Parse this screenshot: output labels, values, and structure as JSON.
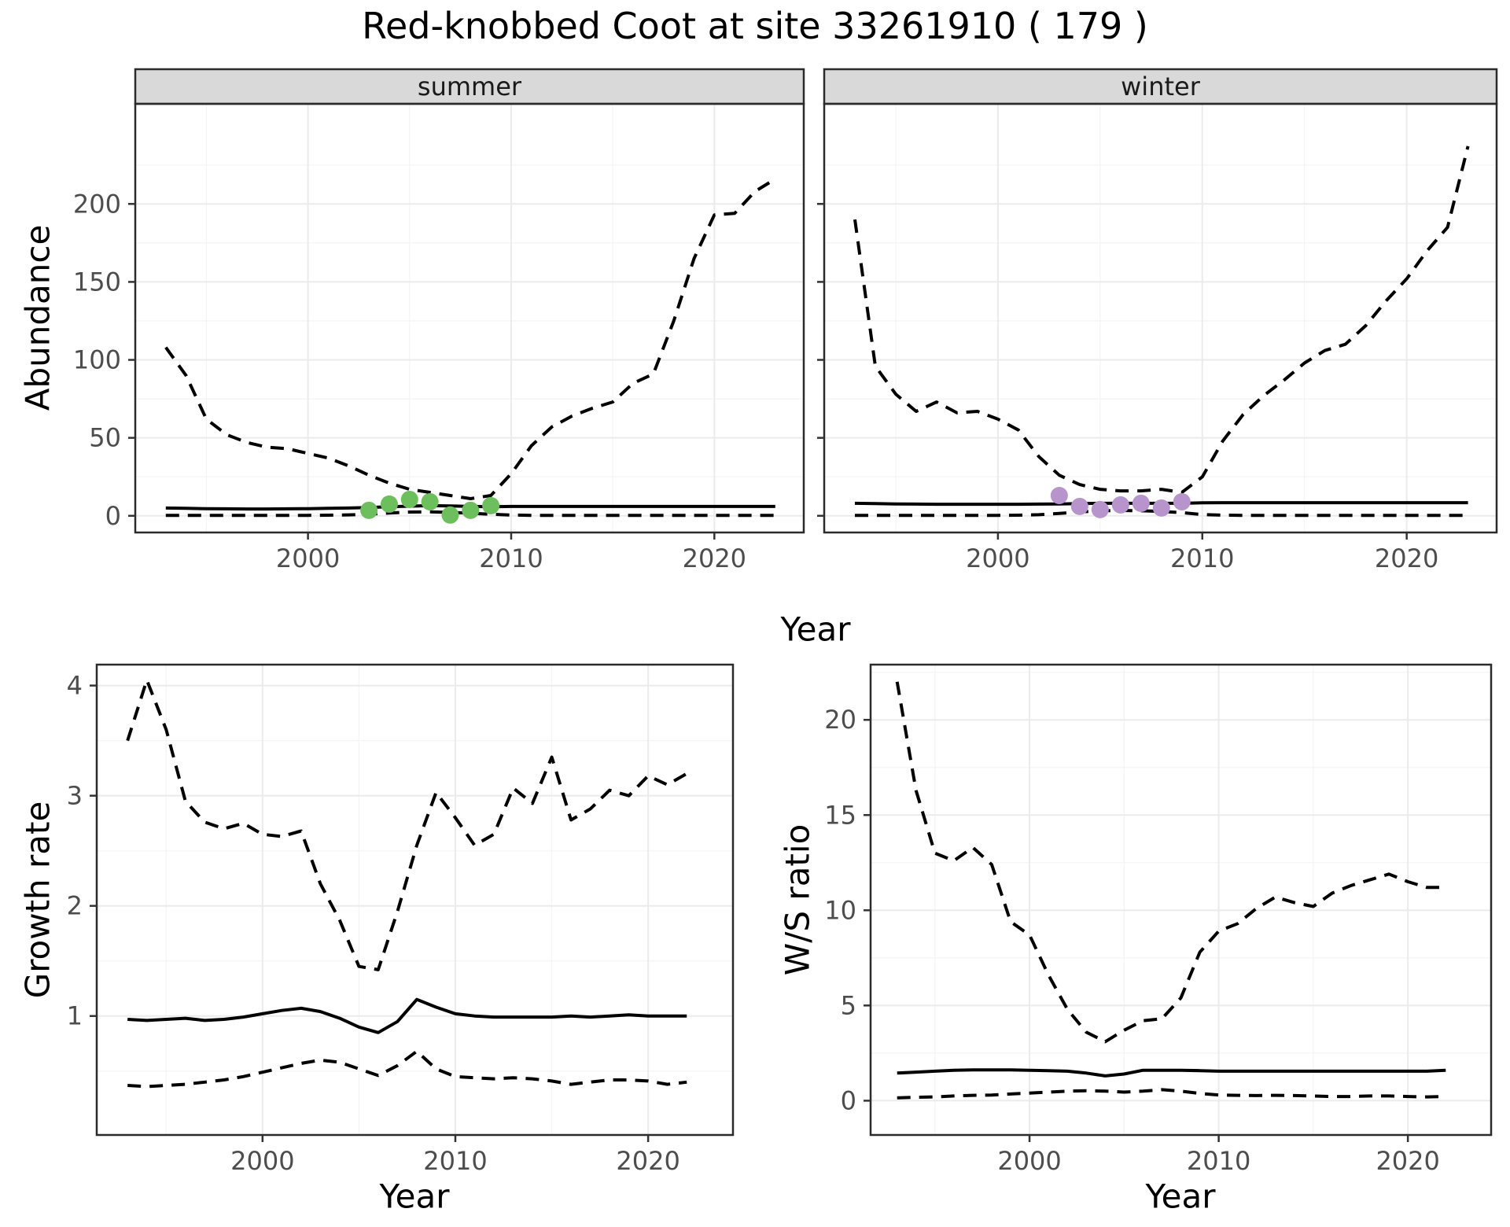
{
  "page_title": "Red-knobbed Coot at site 33261910 ( 179 )",
  "top_row_xlabel": "Year",
  "colors": {
    "line": "#000000",
    "summer_points": "#6cbf5c",
    "winter_points": "#b894cc",
    "strip_bg": "#d9d9d9",
    "panel_bg": "#ffffff",
    "panel_border": "#2b2b2b",
    "grid_major": "#ebebeb",
    "grid_minor": "#f4f4f4",
    "tick_mark": "#333333",
    "tick_label": "#4d4d4d"
  },
  "chart_data": [
    {
      "id": "abundance-summer",
      "type": "line",
      "strip_label": "summer",
      "ylabel": "Abundance",
      "xlabel": null,
      "xlim": [
        1991.5,
        2024.4
      ],
      "ylim": [
        -10.7,
        264.2
      ],
      "xticks": {
        "major": [
          2000,
          2010,
          2020
        ],
        "minor": [
          1995,
          2005,
          2015
        ],
        "labels": [
          "2000",
          "2010",
          "2020"
        ]
      },
      "yticks": {
        "major": [
          0,
          50,
          100,
          150,
          200
        ],
        "minor": [
          25,
          75,
          125,
          175,
          225
        ],
        "labels": [
          "0",
          "50",
          "100",
          "150",
          "200"
        ]
      },
      "x_years": [
        1993,
        1994,
        1995,
        1996,
        1997,
        1998,
        1999,
        2000,
        2001,
        2002,
        2003,
        2004,
        2005,
        2006,
        2007,
        2008,
        2009,
        2010,
        2011,
        2012,
        2013,
        2014,
        2015,
        2016,
        2017,
        2018,
        2019,
        2020,
        2021,
        2022,
        2023
      ],
      "series": [
        {
          "name": "upper_ci",
          "line": "dashed",
          "values": [
            108,
            90,
            62,
            52,
            47,
            44,
            43,
            40,
            37,
            32,
            26,
            21,
            17,
            15,
            13,
            11,
            13,
            27,
            45,
            57,
            64,
            69,
            73,
            85,
            91,
            125,
            165,
            193,
            194,
            208,
            216
          ]
        },
        {
          "name": "median",
          "line": "solid",
          "values": [
            5,
            4.8,
            4.6,
            4.5,
            4.4,
            4.4,
            4.5,
            4.6,
            4.8,
            5,
            5.3,
            5.8,
            6.2,
            6.5,
            6.3,
            6,
            5.8,
            6,
            6,
            6,
            6,
            6,
            6,
            6,
            6,
            6,
            6,
            6,
            6,
            6,
            6
          ]
        },
        {
          "name": "lower_ci",
          "line": "dashed",
          "values": [
            0.3,
            0.3,
            0.3,
            0.3,
            0.3,
            0.3,
            0.3,
            0.3,
            0.4,
            0.6,
            1,
            1.8,
            2.4,
            2.5,
            2.2,
            1.6,
            1,
            0.5,
            0.3,
            0.3,
            0.3,
            0.3,
            0.3,
            0.3,
            0.3,
            0.3,
            0.3,
            0.3,
            0.3,
            0.3,
            0.3
          ]
        }
      ],
      "points": {
        "season": "summer",
        "color_key": "summer_points",
        "years": [
          2003,
          2004,
          2005,
          2006,
          2007,
          2008,
          2009
        ],
        "values": [
          3.5,
          7.5,
          10.5,
          9,
          0.5,
          3.5,
          6.5
        ]
      }
    },
    {
      "id": "abundance-winter",
      "type": "line",
      "strip_label": "winter",
      "ylabel": null,
      "xlabel": null,
      "xlim": [
        1991.5,
        2024.4
      ],
      "ylim": [
        -10.7,
        264.2
      ],
      "xticks": {
        "major": [
          2000,
          2010,
          2020
        ],
        "minor": [
          1995,
          2005,
          2015
        ],
        "labels": [
          "2000",
          "2010",
          "2020"
        ]
      },
      "yticks": {
        "major": [
          0,
          50,
          100,
          150,
          200
        ],
        "minor": [
          25,
          75,
          125,
          175,
          225
        ],
        "labels": []
      },
      "x_years": [
        1993,
        1994,
        1995,
        1996,
        1997,
        1998,
        1999,
        2000,
        2001,
        2002,
        2003,
        2004,
        2005,
        2006,
        2007,
        2008,
        2009,
        2010,
        2011,
        2012,
        2013,
        2014,
        2015,
        2016,
        2017,
        2018,
        2019,
        2020,
        2021,
        2022,
        2023
      ],
      "series": [
        {
          "name": "upper_ci",
          "line": "dashed",
          "values": [
            190,
            96,
            78,
            67,
            73,
            66,
            67,
            62,
            55,
            38,
            26,
            20,
            17,
            16,
            16,
            17,
            15,
            25,
            48,
            65,
            77,
            87,
            98,
            106,
            110,
            122,
            138,
            152,
            170,
            185,
            237
          ]
        },
        {
          "name": "median",
          "line": "solid",
          "values": [
            8,
            7.8,
            7.6,
            7.5,
            7.4,
            7.4,
            7.4,
            7.4,
            7.4,
            7.5,
            7.6,
            7.8,
            8,
            8,
            8,
            8,
            8,
            8.3,
            8.4,
            8.4,
            8.4,
            8.4,
            8.4,
            8.4,
            8.4,
            8.4,
            8.4,
            8.4,
            8.4,
            8.4,
            8.4
          ]
        },
        {
          "name": "lower_ci",
          "line": "dashed",
          "values": [
            0.3,
            0.3,
            0.3,
            0.3,
            0.3,
            0.3,
            0.3,
            0.3,
            0.4,
            0.7,
            1.5,
            2.5,
            3.2,
            3.4,
            3.2,
            2.8,
            2,
            0.8,
            0.4,
            0.3,
            0.3,
            0.3,
            0.3,
            0.3,
            0.3,
            0.3,
            0.3,
            0.3,
            0.3,
            0.3,
            0.3
          ]
        }
      ],
      "points": {
        "season": "winter",
        "color_key": "winter_points",
        "years": [
          2003,
          2004,
          2005,
          2006,
          2007,
          2008,
          2009
        ],
        "values": [
          13,
          6,
          4,
          7,
          8,
          5,
          9
        ]
      }
    },
    {
      "id": "growth-rate",
      "type": "line",
      "strip_label": null,
      "ylabel": "Growth rate",
      "xlabel": "Year",
      "xlim": [
        1991.4,
        2024.4
      ],
      "ylim": [
        -0.08,
        4.19
      ],
      "xticks": {
        "major": [
          2000,
          2010,
          2020
        ],
        "minor": [
          1995,
          2005,
          2015
        ],
        "labels": [
          "2000",
          "2010",
          "2020"
        ]
      },
      "yticks": {
        "major": [
          1,
          2,
          3,
          4
        ],
        "minor": [
          0.5,
          1.5,
          2.5,
          3.5
        ],
        "labels": [
          "1",
          "2",
          "3",
          "4"
        ]
      },
      "x_years": [
        1993,
        1994,
        1995,
        1996,
        1997,
        1998,
        1999,
        2000,
        2001,
        2002,
        2003,
        2004,
        2005,
        2006,
        2007,
        2008,
        2009,
        2010,
        2011,
        2012,
        2013,
        2014,
        2015,
        2016,
        2017,
        2018,
        2019,
        2020,
        2021,
        2022
      ],
      "series": [
        {
          "name": "upper_ci",
          "line": "dashed",
          "values": [
            3.5,
            4.05,
            3.6,
            2.95,
            2.76,
            2.7,
            2.75,
            2.65,
            2.63,
            2.68,
            2.2,
            1.87,
            1.45,
            1.42,
            1.95,
            2.55,
            3.03,
            2.8,
            2.55,
            2.65,
            3.07,
            2.93,
            3.35,
            2.78,
            2.88,
            3.05,
            3.0,
            3.18,
            3.1,
            3.2
          ]
        },
        {
          "name": "median",
          "line": "solid",
          "values": [
            0.97,
            0.96,
            0.97,
            0.98,
            0.96,
            0.97,
            0.99,
            1.02,
            1.05,
            1.07,
            1.04,
            0.98,
            0.9,
            0.85,
            0.95,
            1.15,
            1.08,
            1.02,
            1.0,
            0.99,
            0.99,
            0.99,
            0.99,
            1.0,
            0.99,
            1.0,
            1.01,
            1.0,
            1.0,
            1.0
          ]
        },
        {
          "name": "lower_ci",
          "line": "dashed",
          "values": [
            0.37,
            0.36,
            0.37,
            0.38,
            0.4,
            0.42,
            0.45,
            0.49,
            0.53,
            0.57,
            0.6,
            0.58,
            0.52,
            0.46,
            0.55,
            0.68,
            0.52,
            0.45,
            0.44,
            0.43,
            0.44,
            0.43,
            0.41,
            0.38,
            0.4,
            0.42,
            0.42,
            0.41,
            0.38,
            0.4
          ]
        }
      ],
      "points": null
    },
    {
      "id": "ws-ratio",
      "type": "line",
      "strip_label": null,
      "ylabel": "W/S ratio",
      "xlabel": "Year",
      "xlim": [
        1991.6,
        2024.4
      ],
      "ylim": [
        -1.8,
        22.9
      ],
      "xticks": {
        "major": [
          2000,
          2010,
          2020
        ],
        "minor": [
          1995,
          2005,
          2015
        ],
        "labels": [
          "2000",
          "2010",
          "2020"
        ]
      },
      "yticks": {
        "major": [
          0,
          5,
          10,
          15,
          20
        ],
        "minor": [
          2.5,
          7.5,
          12.5,
          17.5,
          22.5
        ],
        "labels": [
          "0",
          "5",
          "10",
          "15",
          "20"
        ]
      },
      "x_years": [
        1993,
        1994,
        1995,
        1996,
        1997,
        1998,
        1999,
        2000,
        2001,
        2002,
        2003,
        2004,
        2005,
        2006,
        2007,
        2008,
        2009,
        2010,
        2011,
        2012,
        2013,
        2014,
        2015,
        2016,
        2017,
        2018,
        2019,
        2020,
        2021,
        2022
      ],
      "series": [
        {
          "name": "upper_ci",
          "line": "dashed",
          "values": [
            22,
            16.3,
            13,
            12.6,
            13.3,
            12.4,
            9.4,
            8.7,
            6.6,
            4.8,
            3.6,
            3.1,
            3.7,
            4.2,
            4.3,
            5.4,
            7.8,
            8.9,
            9.3,
            10.1,
            10.7,
            10.4,
            10.2,
            10.9,
            11.3,
            11.6,
            11.9,
            11.5,
            11.2,
            11.2
          ]
        },
        {
          "name": "median",
          "line": "solid",
          "values": [
            1.45,
            1.5,
            1.55,
            1.6,
            1.62,
            1.62,
            1.62,
            1.6,
            1.58,
            1.55,
            1.45,
            1.3,
            1.4,
            1.6,
            1.6,
            1.6,
            1.58,
            1.55,
            1.55,
            1.55,
            1.55,
            1.55,
            1.55,
            1.55,
            1.55,
            1.55,
            1.55,
            1.55,
            1.55,
            1.6
          ]
        },
        {
          "name": "lower_ci",
          "line": "dashed",
          "values": [
            0.15,
            0.18,
            0.2,
            0.25,
            0.28,
            0.3,
            0.35,
            0.4,
            0.45,
            0.5,
            0.52,
            0.5,
            0.45,
            0.5,
            0.58,
            0.5,
            0.38,
            0.3,
            0.28,
            0.27,
            0.28,
            0.27,
            0.25,
            0.22,
            0.22,
            0.25,
            0.25,
            0.22,
            0.2,
            0.22
          ]
        }
      ],
      "points": null
    }
  ]
}
